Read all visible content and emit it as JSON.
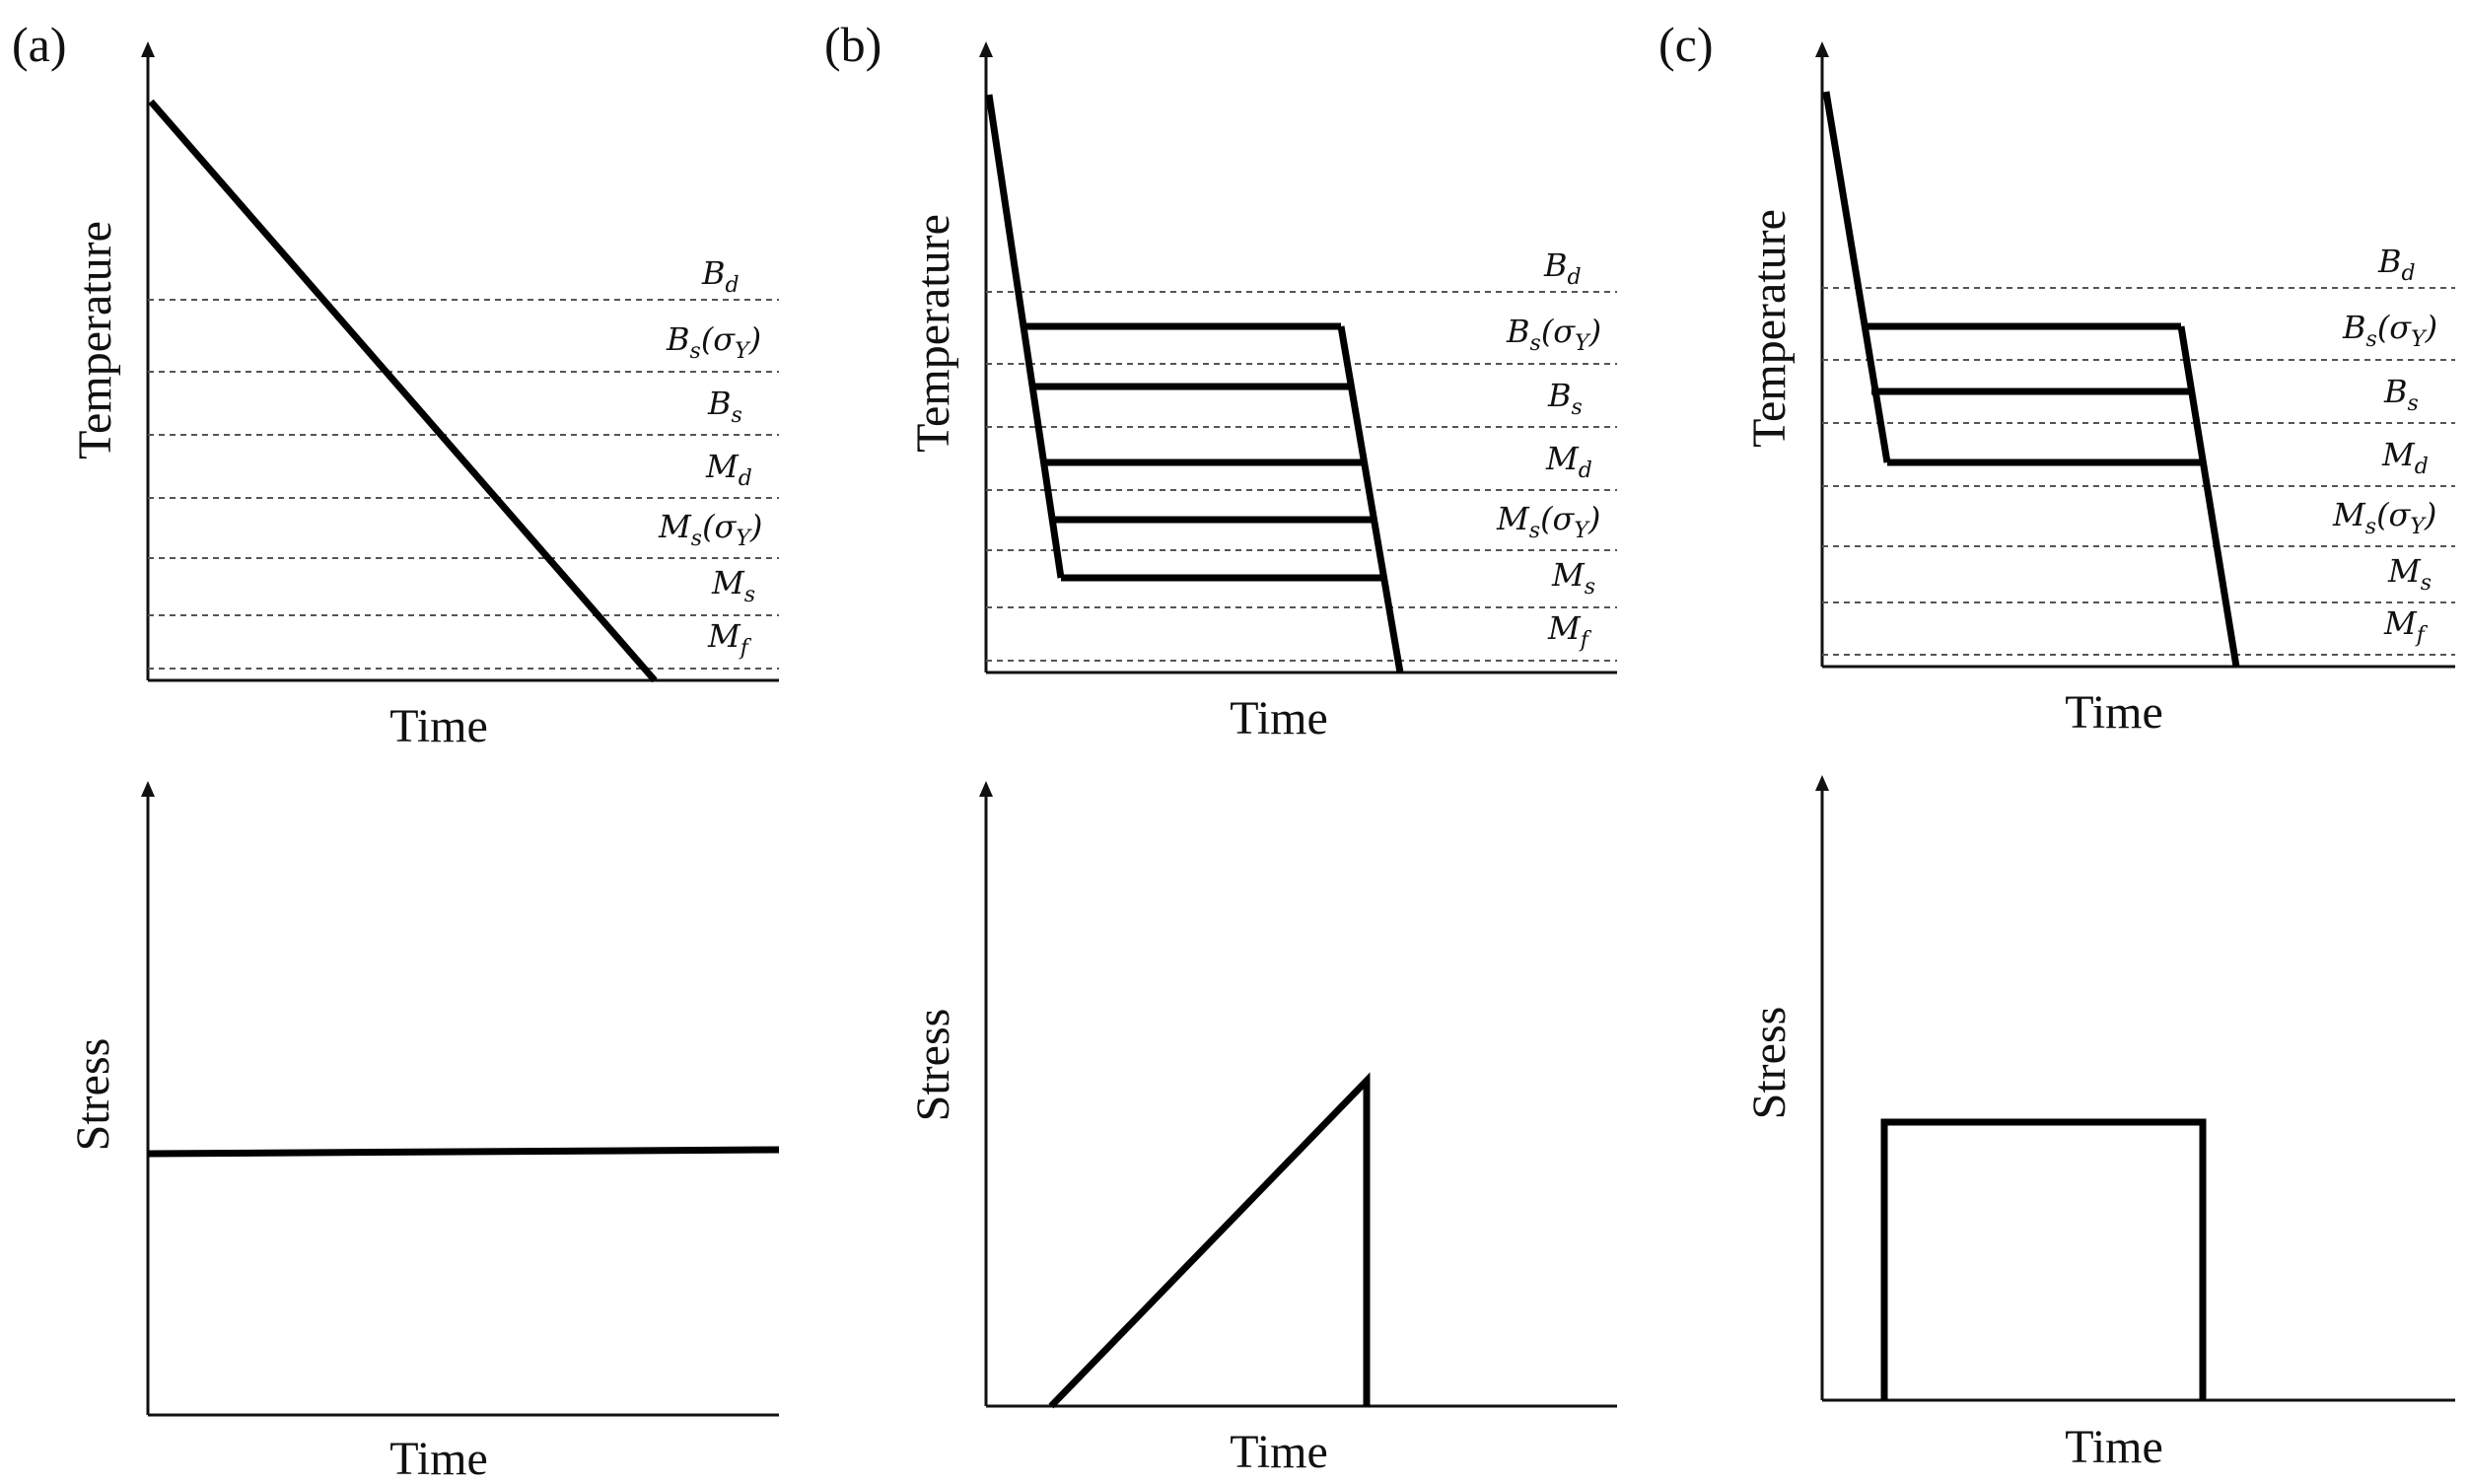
{
  "panels": [
    {
      "letter": "(a)",
      "temperature": {
        "ylabel": "Temperature",
        "xlabel": "Time",
        "levels": [
          {
            "main": "B",
            "sub": "d",
            "suffix": ""
          },
          {
            "main": "B",
            "sub": "s",
            "suffix": "(σ",
            "suffix_sub": "Y",
            "suffix_end": ")"
          },
          {
            "main": "B",
            "sub": "s",
            "suffix": ""
          },
          {
            "main": "M",
            "sub": "d",
            "suffix": ""
          },
          {
            "main": "M",
            "sub": "s",
            "suffix": "(σ",
            "suffix_sub": "Y",
            "suffix_end": ")"
          },
          {
            "main": "M",
            "sub": "s",
            "suffix": ""
          },
          {
            "main": "M",
            "sub": "f",
            "suffix": ""
          }
        ]
      },
      "stress": {
        "ylabel": "Stress",
        "xlabel": "Time"
      }
    },
    {
      "letter": "(b)",
      "temperature": {
        "ylabel": "Temperature",
        "xlabel": "Time",
        "levels": [
          {
            "main": "B",
            "sub": "d",
            "suffix": ""
          },
          {
            "main": "B",
            "sub": "s",
            "suffix": "(σ",
            "suffix_sub": "Y",
            "suffix_end": ")"
          },
          {
            "main": "B",
            "sub": "s",
            "suffix": ""
          },
          {
            "main": "M",
            "sub": "d",
            "suffix": ""
          },
          {
            "main": "M",
            "sub": "s",
            "suffix": "(σ",
            "suffix_sub": "Y",
            "suffix_end": ")"
          },
          {
            "main": "M",
            "sub": "s",
            "suffix": ""
          },
          {
            "main": "M",
            "sub": "f",
            "suffix": ""
          }
        ]
      },
      "stress": {
        "ylabel": "Stress",
        "xlabel": "Time"
      }
    },
    {
      "letter": "(c)",
      "temperature": {
        "ylabel": "Temperature",
        "xlabel": "Time",
        "levels": [
          {
            "main": "B",
            "sub": "d",
            "suffix": ""
          },
          {
            "main": "B",
            "sub": "s",
            "suffix": "(σ",
            "suffix_sub": "Y",
            "suffix_end": ")"
          },
          {
            "main": "B",
            "sub": "s",
            "suffix": ""
          },
          {
            "main": "M",
            "sub": "d",
            "suffix": ""
          },
          {
            "main": "M",
            "sub": "s",
            "suffix": "(σ",
            "suffix_sub": "Y",
            "suffix_end": ")"
          },
          {
            "main": "M",
            "sub": "s",
            "suffix": ""
          },
          {
            "main": "M",
            "sub": "f",
            "suffix": ""
          }
        ]
      },
      "stress": {
        "ylabel": "Stress",
        "xlabel": "Time"
      }
    }
  ]
}
